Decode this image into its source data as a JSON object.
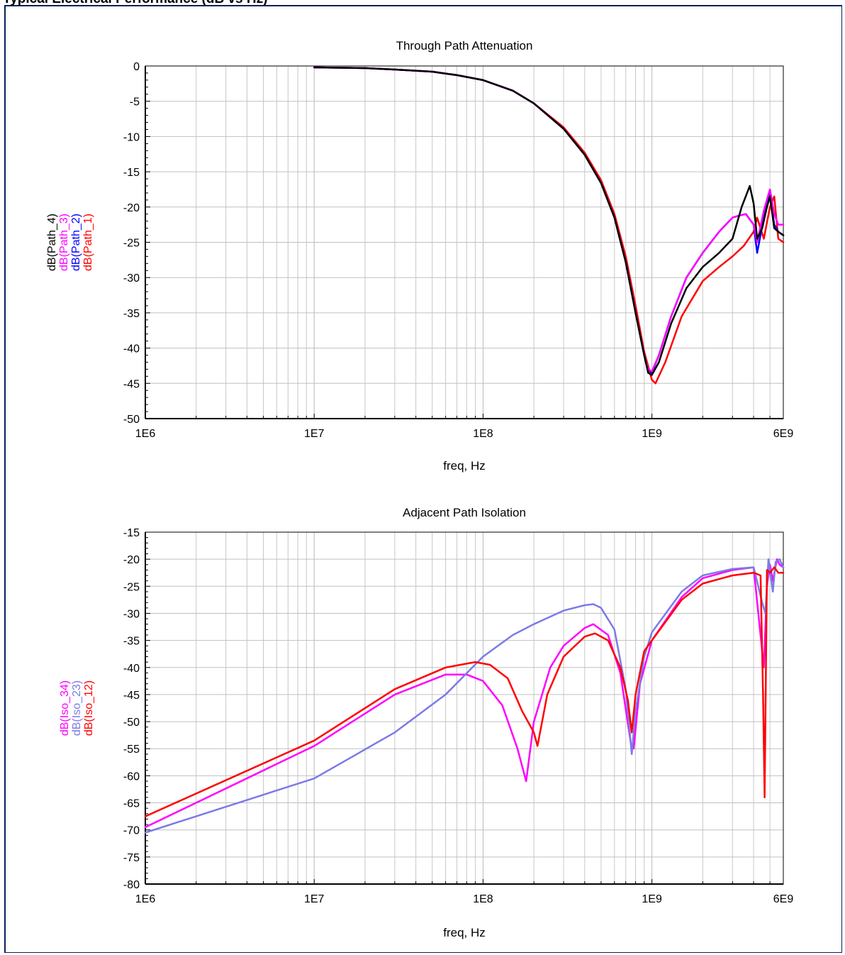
{
  "header": {
    "title": "Typical Electrical Performance (dB vs Hz)"
  },
  "chart_data": [
    {
      "type": "line",
      "title": "Through Path Attenuation",
      "xlabel": "freq, Hz",
      "ylabel_series_order": [
        "dB(Path_4)",
        "dB(Path_3)",
        "dB(Path_2)",
        "dB(Path_1)"
      ],
      "x_scale": "log",
      "xlim": [
        1000000,
        6000000000
      ],
      "ylim": [
        -50,
        0
      ],
      "x_ticks": [
        {
          "value": 1000000,
          "label": "1E6"
        },
        {
          "value": 10000000,
          "label": "1E7"
        },
        {
          "value": 100000000,
          "label": "1E8"
        },
        {
          "value": 1000000000,
          "label": "1E9"
        },
        {
          "value": 6000000000,
          "label": "6E9"
        }
      ],
      "y_ticks": [
        {
          "value": 0,
          "label": "0"
        },
        {
          "value": -5,
          "label": "-5"
        },
        {
          "value": -10,
          "label": "-10"
        },
        {
          "value": -15,
          "label": "-15"
        },
        {
          "value": -20,
          "label": "-20"
        },
        {
          "value": -25,
          "label": "-25"
        },
        {
          "value": -30,
          "label": "-30"
        },
        {
          "value": -35,
          "label": "-35"
        },
        {
          "value": -40,
          "label": "-40"
        },
        {
          "value": -45,
          "label": "-45"
        },
        {
          "value": -50,
          "label": "-50"
        }
      ],
      "grid": true,
      "series": [
        {
          "name": "dB(Path_1)",
          "color": "#ff0000",
          "x": [
            10000000,
            20000000,
            30000000,
            50000000,
            70000000,
            100000000,
            150000000,
            200000000,
            300000000,
            400000000,
            500000000,
            600000000,
            700000000,
            800000000,
            900000000,
            1000000000,
            1050000000,
            1200000000,
            1500000000,
            2000000000,
            2500000000,
            3000000000,
            3500000000,
            4000000000,
            4200000000,
            4600000000,
            5000000000,
            5300000000,
            5600000000,
            6000000000
          ],
          "y": [
            -0.2,
            -0.3,
            -0.5,
            -0.8,
            -1.3,
            -2.0,
            -3.5,
            -5.3,
            -8.7,
            -12.3,
            -16.2,
            -21.0,
            -27.0,
            -34.0,
            -40.5,
            -44.5,
            -45.0,
            -42.0,
            -35.5,
            -30.5,
            -28.5,
            -27.0,
            -25.5,
            -23.5,
            -21.5,
            -24.5,
            -20.0,
            -18.5,
            -24.5,
            -25.0
          ]
        },
        {
          "name": "dB(Path_2)",
          "color": "#0000ff",
          "x": [
            10000000,
            20000000,
            30000000,
            50000000,
            70000000,
            100000000,
            150000000,
            200000000,
            300000000,
            400000000,
            500000000,
            600000000,
            700000000,
            800000000,
            900000000,
            950000000,
            1000000000,
            1100000000,
            1300000000,
            1600000000,
            2000000000,
            2500000000,
            3000000000,
            3300000000,
            3600000000,
            4000000000,
            4200000000,
            4600000000,
            5000000000,
            5300000000,
            5600000000,
            6000000000
          ],
          "y": [
            -0.2,
            -0.3,
            -0.5,
            -0.8,
            -1.3,
            -2.0,
            -3.5,
            -5.3,
            -8.9,
            -12.6,
            -16.6,
            -21.5,
            -27.8,
            -35.0,
            -41.0,
            -43.0,
            -43.5,
            -41.0,
            -35.5,
            -30.0,
            -26.5,
            -23.5,
            -21.5,
            -21.2,
            -21.0,
            -22.5,
            -26.5,
            -21.5,
            -18.0,
            -22.5,
            -23.5,
            -24.0
          ]
        },
        {
          "name": "dB(Path_3)",
          "color": "#ff00ff",
          "x": [
            10000000,
            20000000,
            30000000,
            50000000,
            70000000,
            100000000,
            150000000,
            200000000,
            300000000,
            400000000,
            500000000,
            600000000,
            700000000,
            800000000,
            900000000,
            950000000,
            1000000000,
            1100000000,
            1300000000,
            1600000000,
            2000000000,
            2500000000,
            3000000000,
            3300000000,
            3600000000,
            4000000000,
            4200000000,
            4600000000,
            5000000000,
            5300000000,
            5600000000,
            6000000000
          ],
          "y": [
            -0.2,
            -0.3,
            -0.5,
            -0.8,
            -1.3,
            -2.0,
            -3.5,
            -5.3,
            -8.9,
            -12.6,
            -16.6,
            -21.5,
            -27.8,
            -35.0,
            -41.0,
            -43.0,
            -43.3,
            -41.0,
            -35.5,
            -30.0,
            -26.5,
            -23.5,
            -21.5,
            -21.2,
            -21.0,
            -22.5,
            -25.0,
            -20.5,
            -17.5,
            -21.0,
            -22.5,
            -22.5
          ]
        },
        {
          "name": "dB(Path_4)",
          "color": "#000000",
          "x": [
            10000000,
            20000000,
            30000000,
            50000000,
            70000000,
            100000000,
            150000000,
            200000000,
            300000000,
            400000000,
            500000000,
            600000000,
            700000000,
            800000000,
            900000000,
            950000000,
            1000000000,
            1100000000,
            1300000000,
            1600000000,
            2000000000,
            2500000000,
            3000000000,
            3400000000,
            3800000000,
            4000000000,
            4200000000,
            4500000000,
            4800000000,
            5000000000,
            5300000000,
            5600000000,
            6000000000
          ],
          "y": [
            -0.2,
            -0.3,
            -0.5,
            -0.8,
            -1.3,
            -2.0,
            -3.5,
            -5.3,
            -8.9,
            -12.6,
            -16.6,
            -21.5,
            -27.8,
            -35.0,
            -41.0,
            -43.5,
            -43.8,
            -42.0,
            -36.5,
            -31.5,
            -28.5,
            -26.5,
            -24.5,
            -20.0,
            -17.0,
            -19.5,
            -24.5,
            -23.0,
            -20.0,
            -18.5,
            -23.0,
            -23.5,
            -24.0
          ]
        }
      ]
    },
    {
      "type": "line",
      "title": "Adjacent Path Isolation",
      "xlabel": "freq, Hz",
      "ylabel_series_order": [
        "dB(Iso_34)",
        "dB(Iso_23)",
        "dB(Iso_12)"
      ],
      "x_scale": "log",
      "xlim": [
        1000000,
        6000000000
      ],
      "ylim": [
        -80,
        -15
      ],
      "x_ticks": [
        {
          "value": 1000000,
          "label": "1E6"
        },
        {
          "value": 10000000,
          "label": "1E7"
        },
        {
          "value": 100000000,
          "label": "1E8"
        },
        {
          "value": 1000000000,
          "label": "1E9"
        },
        {
          "value": 6000000000,
          "label": "6E9"
        }
      ],
      "y_ticks": [
        {
          "value": -15,
          "label": "-15"
        },
        {
          "value": -20,
          "label": "-20"
        },
        {
          "value": -25,
          "label": "-25"
        },
        {
          "value": -30,
          "label": "-30"
        },
        {
          "value": -35,
          "label": "-35"
        },
        {
          "value": -40,
          "label": "-40"
        },
        {
          "value": -45,
          "label": "-45"
        },
        {
          "value": -50,
          "label": "-50"
        },
        {
          "value": -55,
          "label": "-55"
        },
        {
          "value": -60,
          "label": "-60"
        },
        {
          "value": -65,
          "label": "-65"
        },
        {
          "value": -70,
          "label": "-70"
        },
        {
          "value": -75,
          "label": "-75"
        },
        {
          "value": -80,
          "label": "-80"
        }
      ],
      "grid": true,
      "series": [
        {
          "name": "dB(Iso_34)",
          "color": "#ff00ff",
          "x": [
            1000000,
            10000000,
            30000000,
            60000000,
            80000000,
            100000000,
            130000000,
            160000000,
            180000000,
            200000000,
            250000000,
            300000000,
            400000000,
            450000000,
            550000000,
            650000000,
            750000000,
            780000000,
            850000000,
            1000000000,
            1500000000,
            2000000000,
            3000000000,
            4000000000,
            4600000000,
            4800000000,
            5000000000,
            5200000000,
            5500000000,
            5700000000,
            6000000000
          ],
          "y": [
            -69.5,
            -54.5,
            -45.0,
            -41.3,
            -41.3,
            -42.5,
            -47.0,
            -55.0,
            -61.0,
            -50.0,
            -40.0,
            -36.0,
            -32.7,
            -32.0,
            -34.0,
            -41.0,
            -54.0,
            -55.0,
            -43.0,
            -35.0,
            -27.0,
            -23.5,
            -22.0,
            -21.5,
            -40.0,
            -25.0,
            -21.0,
            -24.0,
            -20.0,
            -21.0,
            -21.5
          ]
        },
        {
          "name": "dB(Iso_23)",
          "color": "#7b7be6",
          "x": [
            1000000,
            10000000,
            30000000,
            60000000,
            100000000,
            150000000,
            200000000,
            300000000,
            400000000,
            450000000,
            500000000,
            600000000,
            700000000,
            760000000,
            800000000,
            900000000,
            1000000000,
            1500000000,
            2000000000,
            3000000000,
            4000000000,
            4500000000,
            4700000000,
            4900000000,
            5200000000,
            5400000000,
            5700000000,
            6000000000
          ],
          "y": [
            -70.5,
            -60.5,
            -52.0,
            -45.0,
            -38.0,
            -34.0,
            -32.0,
            -29.5,
            -28.5,
            -28.3,
            -29.0,
            -33.0,
            -44.0,
            -56.0,
            -48.0,
            -38.0,
            -33.5,
            -26.0,
            -23.0,
            -21.8,
            -21.5,
            -28.0,
            -30.0,
            -20.0,
            -26.0,
            -20.5,
            -20.0,
            -21.5
          ]
        },
        {
          "name": "dB(Iso_12)",
          "color": "#ff0000",
          "x": [
            1000000,
            10000000,
            30000000,
            60000000,
            90000000,
            110000000,
            140000000,
            170000000,
            200000000,
            210000000,
            240000000,
            300000000,
            400000000,
            460000000,
            550000000,
            650000000,
            720000000,
            760000000,
            800000000,
            900000000,
            1000000000,
            1500000000,
            2000000000,
            3000000000,
            4000000000,
            4400000000,
            4550000000,
            4650000000,
            4800000000,
            5000000000,
            5300000000,
            5600000000,
            6000000000
          ],
          "y": [
            -67.5,
            -53.5,
            -44.0,
            -40.0,
            -39.0,
            -39.5,
            -42.0,
            -48.0,
            -52.0,
            -54.5,
            -45.0,
            -38.0,
            -34.3,
            -33.7,
            -35.0,
            -40.0,
            -46.0,
            -52.0,
            -45.0,
            -37.0,
            -35.0,
            -27.5,
            -24.5,
            -23.0,
            -22.5,
            -23.0,
            -45.0,
            -64.0,
            -22.0,
            -22.5,
            -21.5,
            -22.5,
            -22.5
          ]
        }
      ]
    }
  ]
}
